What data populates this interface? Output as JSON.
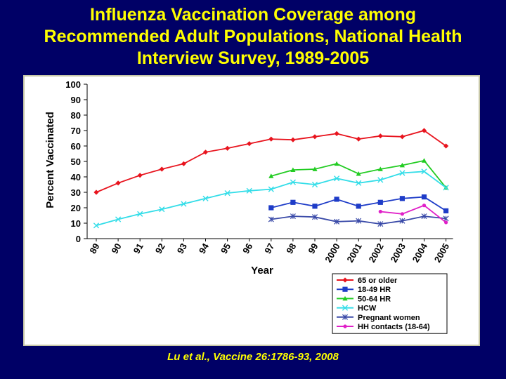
{
  "slide": {
    "title_lines": [
      "Influenza Vaccination Coverage among",
      "Recommended Adult Populations, National Health",
      "Interview Survey, 1989-2005"
    ],
    "citation": "Lu et al., Vaccine 26:1786-93, 2008"
  },
  "colors": {
    "background": "#000066",
    "title_text": "#ffff00",
    "panel": "#ffffff"
  },
  "chart_data": {
    "type": "line",
    "xlabel": "Year",
    "ylabel": "Percent Vaccinated",
    "ylim": [
      0,
      100
    ],
    "yticks": [
      0,
      10,
      20,
      30,
      40,
      50,
      60,
      70,
      80,
      90,
      100
    ],
    "categories": [
      "89",
      "90",
      "91",
      "92",
      "93",
      "94",
      "95",
      "96",
      "97",
      "98",
      "99",
      "2000",
      "2001",
      "2002",
      "2003",
      "2004",
      "2005"
    ],
    "grid": false,
    "legend_position": "bottom-right",
    "series": [
      {
        "name": "65 or older",
        "color": "#e8141e",
        "marker": "diamond",
        "values": [
          30,
          36,
          41,
          45,
          48.5,
          56,
          58.5,
          61.5,
          64.5,
          64,
          66,
          68,
          64.5,
          66.5,
          66,
          70,
          60
        ]
      },
      {
        "name": "18-49 HR",
        "color": "#1e3cc8",
        "marker": "square",
        "values": [
          null,
          null,
          null,
          null,
          null,
          null,
          null,
          null,
          20,
          23.5,
          21,
          25.5,
          21,
          23.5,
          26,
          27,
          18
        ]
      },
      {
        "name": "50-64 HR",
        "color": "#22cc22",
        "marker": "triangle",
        "values": [
          null,
          null,
          null,
          null,
          null,
          null,
          null,
          null,
          40.5,
          44.5,
          45,
          48.5,
          42,
          45,
          47.5,
          50.5,
          33
        ]
      },
      {
        "name": "HCW",
        "color": "#33dde8",
        "marker": "x",
        "values": [
          8.5,
          12.5,
          16,
          19,
          22.5,
          26,
          29.5,
          31,
          32,
          36.5,
          35,
          39,
          36,
          38,
          42.5,
          43.5,
          33
        ]
      },
      {
        "name": "Pregnant women",
        "color": "#3a4aa8",
        "marker": "star",
        "values": [
          null,
          null,
          null,
          null,
          null,
          null,
          null,
          null,
          12.5,
          14.5,
          14,
          11,
          11.5,
          9.5,
          11.5,
          14.5,
          13
        ]
      },
      {
        "name": "HH contacts (18-64)",
        "color": "#e020c8",
        "marker": "circle",
        "values": [
          null,
          null,
          null,
          null,
          null,
          null,
          null,
          null,
          null,
          null,
          null,
          null,
          null,
          17.5,
          16,
          21.5,
          10.5
        ]
      }
    ]
  }
}
